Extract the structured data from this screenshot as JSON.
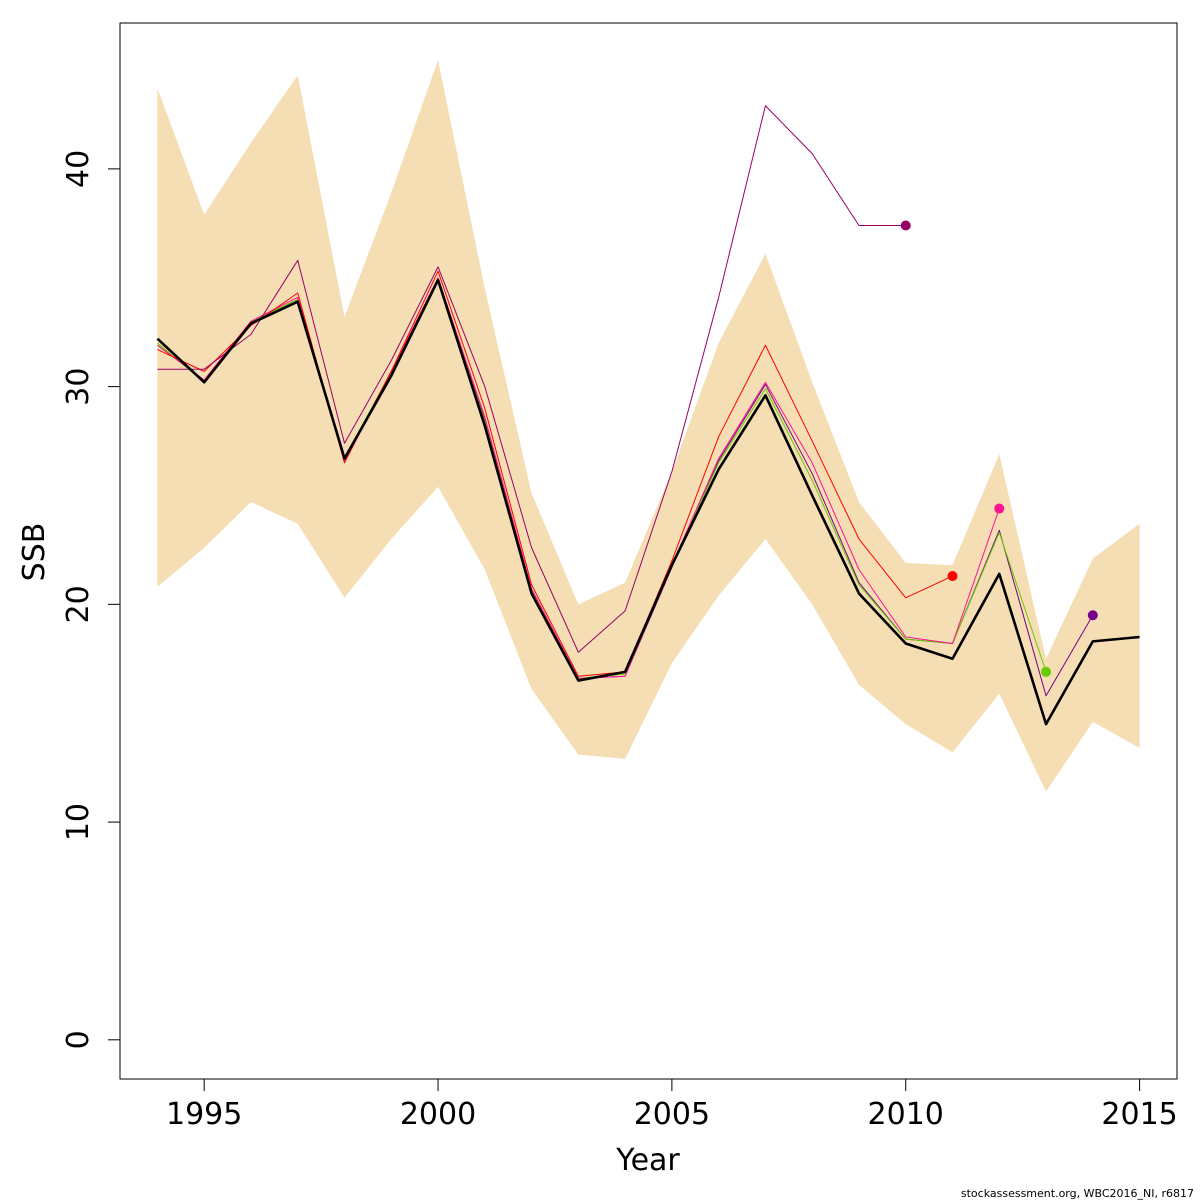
{
  "chart_data": {
    "type": "line",
    "xlabel": "Year",
    "ylabel": "SSB",
    "xlim": [
      1993.2,
      2015.8
    ],
    "ylim": [
      -1.8,
      46.7
    ],
    "x_ticks": [
      1995,
      2000,
      2005,
      2010,
      2015
    ],
    "y_ticks": [
      0,
      10,
      20,
      30,
      40
    ],
    "band": {
      "color": "#f5deb3",
      "x": [
        1994,
        1995,
        1996,
        1997,
        1998,
        1999,
        2000,
        2001,
        2002,
        2003,
        2004,
        2005,
        2006,
        2007,
        2008,
        2009,
        2010,
        2011,
        2012,
        2013,
        2014,
        2015
      ],
      "upper": [
        43.7,
        37.9,
        41.2,
        44.3,
        33.2,
        38.9,
        45.0,
        34.5,
        25.1,
        20.0,
        21.0,
        26.1,
        32.0,
        36.1,
        30.2,
        24.7,
        21.9,
        21.8,
        26.9,
        17.5,
        22.1,
        23.7
      ],
      "lower": [
        20.8,
        22.6,
        24.7,
        23.7,
        20.3,
        23.0,
        25.4,
        21.6,
        16.1,
        13.1,
        12.9,
        17.3,
        20.4,
        23.0,
        20.0,
        16.3,
        14.5,
        13.2,
        15.9,
        11.4,
        14.6,
        13.4
      ]
    },
    "series": [
      {
        "color": "#000000",
        "width": 2.6,
        "endpoint": false,
        "x": [
          1994,
          1995,
          1996,
          1997,
          1998,
          1999,
          2000,
          2001,
          2002,
          2003,
          2004,
          2005,
          2006,
          2007,
          2008,
          2009,
          2010,
          2011,
          2012,
          2013,
          2014,
          2015
        ],
        "y": [
          32.2,
          30.2,
          32.9,
          33.9,
          26.7,
          30.5,
          34.9,
          28.2,
          20.5,
          16.5,
          16.9,
          21.8,
          26.2,
          29.6,
          25.0,
          20.5,
          18.2,
          17.5,
          21.4,
          14.5,
          18.3,
          18.5
        ]
      },
      {
        "color": "#77008a",
        "width": 1,
        "endpoint": true,
        "x": [
          1994,
          1995,
          1996,
          1997,
          1998,
          1999,
          2000,
          2001,
          2002,
          2003,
          2004,
          2005,
          2006,
          2007,
          2008,
          2009,
          2010,
          2011,
          2012,
          2013,
          2014
        ],
        "y": [
          31.9,
          30.3,
          33.0,
          34.0,
          26.6,
          30.7,
          34.9,
          28.5,
          20.7,
          16.6,
          16.7,
          21.7,
          26.6,
          30.1,
          26.0,
          21.0,
          18.4,
          18.2,
          23.4,
          15.8,
          19.5
        ]
      },
      {
        "color": "#66cc00",
        "width": 1,
        "endpoint": true,
        "x": [
          1994,
          1995,
          1996,
          1997,
          1998,
          1999,
          2000,
          2001,
          2002,
          2003,
          2004,
          2005,
          2006,
          2007,
          2008,
          2009,
          2010,
          2011,
          2012,
          2013
        ],
        "y": [
          32.0,
          30.2,
          33.0,
          34.0,
          26.7,
          30.7,
          34.9,
          28.4,
          20.6,
          16.6,
          16.8,
          21.8,
          26.5,
          29.9,
          25.7,
          20.9,
          18.4,
          18.2,
          23.3,
          16.9
        ]
      },
      {
        "color": "#ff1493",
        "width": 1,
        "endpoint": true,
        "x": [
          1994,
          1995,
          1996,
          1997,
          1998,
          1999,
          2000,
          2001,
          2002,
          2003,
          2004,
          2005,
          2006,
          2007,
          2008,
          2009,
          2010,
          2011,
          2012
        ],
        "y": [
          31.9,
          30.3,
          33.0,
          34.1,
          26.6,
          30.7,
          35.0,
          28.6,
          20.7,
          16.6,
          16.7,
          21.8,
          26.7,
          30.2,
          26.5,
          21.6,
          18.5,
          18.2,
          24.4
        ]
      },
      {
        "color": "#ff0000",
        "width": 1,
        "endpoint": true,
        "x": [
          1994,
          1995,
          1996,
          1997,
          1998,
          1999,
          2000,
          2001,
          2002,
          2003,
          2004,
          2005,
          2006,
          2007,
          2008,
          2009,
          2010,
          2011
        ],
        "y": [
          31.7,
          30.7,
          32.8,
          34.3,
          26.5,
          30.7,
          35.3,
          29.0,
          20.9,
          16.7,
          16.9,
          22.0,
          27.7,
          31.9,
          27.5,
          23.0,
          20.3,
          21.3
        ]
      },
      {
        "color": "#990066",
        "width": 1,
        "endpoint": true,
        "x": [
          1994,
          1995,
          1996,
          1997,
          1998,
          1999,
          2000,
          2001,
          2002,
          2003,
          2004,
          2005,
          2006,
          2007,
          2008,
          2009,
          2010
        ],
        "y": [
          30.8,
          30.8,
          32.4,
          35.8,
          27.4,
          31.2,
          35.5,
          30.0,
          22.6,
          17.8,
          19.7,
          26.1,
          34.1,
          42.9,
          40.7,
          37.4,
          37.4
        ]
      }
    ]
  },
  "footer": "stockassessment.org, WBC2016_NI, r6817"
}
